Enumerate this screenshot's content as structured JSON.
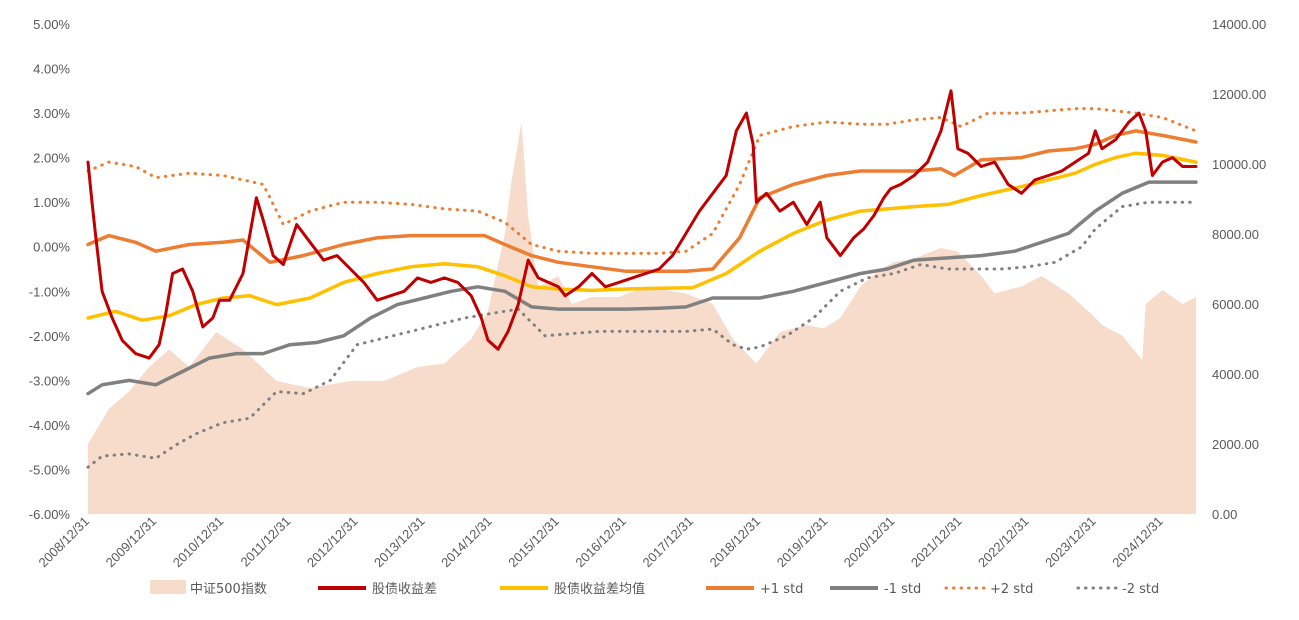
{
  "chart_data": {
    "type": "line",
    "x_axis": {
      "start": "2008/12/31",
      "end": "2025/06/30",
      "tick_labels": [
        "2008/12/31",
        "2009/12/31",
        "2010/12/31",
        "2011/12/31",
        "2012/12/31",
        "2013/12/31",
        "2014/12/31",
        "2015/12/31",
        "2016/12/31",
        "2017/12/31",
        "2018/12/31",
        "2019/12/31",
        "2020/12/31",
        "2021/12/31",
        "2022/12/31",
        "2023/12/31",
        "2024/12/31"
      ]
    },
    "y_left": {
      "ylim": [
        -6,
        5
      ],
      "tick_labels": [
        "5.00%",
        "4.00%",
        "3.00%",
        "2.00%",
        "1.00%",
        "0.00%",
        "-1.00%",
        "-2.00%",
        "-3.00%",
        "-4.00%",
        "-5.00%",
        "-6.00%"
      ]
    },
    "y_right": {
      "ylim": [
        0,
        14000
      ],
      "tick_labels": [
        "14000.00",
        "12000.00",
        "10000.00",
        "8000.00",
        "6000.00",
        "4000.00",
        "2000.00",
        "0.00"
      ]
    },
    "grid": false,
    "legend_position": "bottom",
    "series": [
      {
        "name": "中证500指数",
        "kind": "area",
        "axis": "right",
        "color": "#f8dccb",
        "x": [
          2008.99,
          2009.3,
          2009.6,
          2009.9,
          2010.2,
          2010.5,
          2010.9,
          2011.3,
          2011.8,
          2012.3,
          2012.9,
          2013.4,
          2013.9,
          2014.3,
          2014.7,
          2014.95,
          2015.2,
          2015.3,
          2015.45,
          2015.55,
          2015.7,
          2016.0,
          2016.2,
          2016.5,
          2016.9,
          2017.3,
          2017.9,
          2018.3,
          2018.6,
          2018.95,
          2019.3,
          2019.7,
          2019.95,
          2020.2,
          2020.5,
          2020.8,
          2021.0,
          2021.3,
          2021.7,
          2021.95,
          2022.3,
          2022.5,
          2022.9,
          2023.2,
          2023.6,
          2023.95,
          2024.1,
          2024.4,
          2024.7,
          2024.75,
          2025.0,
          2025.3,
          2025.5
        ],
        "values": [
          2000,
          3000,
          3500,
          4200,
          4700,
          4200,
          5200,
          4700,
          3800,
          3600,
          3800,
          3800,
          4200,
          4300,
          5000,
          5800,
          8000,
          9500,
          11200,
          8500,
          6500,
          6800,
          6000,
          6200,
          6200,
          6500,
          6300,
          6000,
          5000,
          4300,
          5200,
          5400,
          5300,
          5600,
          6500,
          7000,
          7200,
          7300,
          7600,
          7500,
          6800,
          6300,
          6500,
          6800,
          6300,
          5700,
          5400,
          5100,
          4400,
          6000,
          6400,
          6000,
          6200
        ]
      },
      {
        "name": "股债收益差",
        "kind": "line",
        "axis": "left",
        "color": "#c00000",
        "x": [
          2008.99,
          2009.05,
          2009.1,
          2009.2,
          2009.35,
          2009.5,
          2009.7,
          2009.9,
          2010.05,
          2010.15,
          2010.25,
          2010.4,
          2010.55,
          2010.7,
          2010.85,
          2010.95,
          2011.1,
          2011.3,
          2011.5,
          2011.6,
          2011.75,
          2011.9,
          2012.1,
          2012.3,
          2012.5,
          2012.7,
          2012.9,
          2013.1,
          2013.3,
          2013.5,
          2013.7,
          2013.9,
          2014.1,
          2014.3,
          2014.5,
          2014.7,
          2014.85,
          2014.95,
          2015.1,
          2015.25,
          2015.4,
          2015.55,
          2015.7,
          2015.85,
          2016.0,
          2016.1,
          2016.3,
          2016.5,
          2016.7,
          2016.9,
          2017.1,
          2017.3,
          2017.5,
          2017.7,
          2017.9,
          2018.1,
          2018.3,
          2018.5,
          2018.65,
          2018.8,
          2018.9,
          2018.95,
          2019.1,
          2019.3,
          2019.5,
          2019.7,
          2019.9,
          2020.0,
          2020.2,
          2020.4,
          2020.55,
          2020.7,
          2020.85,
          2020.95,
          2021.1,
          2021.3,
          2021.5,
          2021.7,
          2021.85,
          2021.95,
          2022.1,
          2022.3,
          2022.5,
          2022.7,
          2022.9,
          2023.1,
          2023.3,
          2023.5,
          2023.7,
          2023.9,
          2024.0,
          2024.1,
          2024.3,
          2024.5,
          2024.65,
          2024.75,
          2024.85,
          2025.0,
          2025.15,
          2025.3,
          2025.5
        ],
        "values": [
          1.9,
          1.0,
          0.3,
          -1.0,
          -1.6,
          -2.1,
          -2.4,
          -2.5,
          -2.2,
          -1.5,
          -0.6,
          -0.5,
          -1.0,
          -1.8,
          -1.6,
          -1.2,
          -1.2,
          -0.6,
          1.1,
          0.6,
          -0.2,
          -0.4,
          0.5,
          0.1,
          -0.3,
          -0.2,
          -0.5,
          -0.8,
          -1.2,
          -1.1,
          -1.0,
          -0.7,
          -0.8,
          -0.7,
          -0.8,
          -1.1,
          -1.6,
          -2.1,
          -2.3,
          -1.9,
          -1.3,
          -0.3,
          -0.7,
          -0.8,
          -0.9,
          -1.1,
          -0.9,
          -0.6,
          -0.9,
          -0.8,
          -0.7,
          -0.6,
          -0.5,
          -0.2,
          0.3,
          0.8,
          1.2,
          1.6,
          2.6,
          3.0,
          2.3,
          1.0,
          1.2,
          0.8,
          1.0,
          0.5,
          1.0,
          0.2,
          -0.2,
          0.2,
          0.4,
          0.7,
          1.1,
          1.3,
          1.4,
          1.6,
          1.9,
          2.6,
          3.5,
          2.2,
          2.1,
          1.8,
          1.9,
          1.4,
          1.2,
          1.5,
          1.6,
          1.7,
          1.9,
          2.1,
          2.6,
          2.2,
          2.4,
          2.8,
          3.0,
          2.6,
          1.6,
          1.9,
          2.0,
          1.8,
          1.8
        ]
      },
      {
        "name": "股债收益差均值",
        "kind": "line",
        "axis": "left",
        "color": "#ffc000",
        "x": [
          2008.99,
          2009.4,
          2009.8,
          2010.2,
          2010.6,
          2011.0,
          2011.4,
          2011.8,
          2012.3,
          2012.8,
          2013.3,
          2013.8,
          2014.3,
          2014.8,
          2015.2,
          2015.6,
          2016.0,
          2016.5,
          2017.0,
          2017.5,
          2018.0,
          2018.5,
          2019.0,
          2019.5,
          2020.0,
          2020.5,
          2020.9,
          2021.3,
          2021.8,
          2022.3,
          2022.9,
          2023.3,
          2023.7,
          2024.0,
          2024.3,
          2024.6,
          2025.0,
          2025.5
        ],
        "values": [
          -1.6,
          -1.45,
          -1.65,
          -1.55,
          -1.3,
          -1.15,
          -1.1,
          -1.3,
          -1.15,
          -0.8,
          -0.6,
          -0.45,
          -0.38,
          -0.45,
          -0.65,
          -0.9,
          -0.95,
          -0.98,
          -0.95,
          -0.93,
          -0.92,
          -0.6,
          -0.1,
          0.3,
          0.6,
          0.8,
          0.85,
          0.9,
          0.95,
          1.15,
          1.35,
          1.5,
          1.65,
          1.85,
          2.0,
          2.1,
          2.05,
          1.9
        ]
      },
      {
        "name": "+1 std",
        "kind": "line",
        "axis": "left",
        "color": "#ed7d31",
        "x": [
          2008.99,
          2009.3,
          2009.7,
          2010.0,
          2010.5,
          2011.0,
          2011.3,
          2011.7,
          2012.2,
          2012.8,
          2013.3,
          2013.8,
          2014.3,
          2014.9,
          2015.2,
          2015.6,
          2016.0,
          2016.5,
          2017.0,
          2017.5,
          2017.9,
          2018.3,
          2018.7,
          2019.0,
          2019.5,
          2020.0,
          2020.5,
          2020.9,
          2021.3,
          2021.7,
          2021.9,
          2022.3,
          2022.9,
          2023.3,
          2023.7,
          2024.0,
          2024.3,
          2024.6,
          2025.0,
          2025.5
        ],
        "values": [
          0.05,
          0.25,
          0.1,
          -0.1,
          0.05,
          0.1,
          0.15,
          -0.35,
          -0.2,
          0.05,
          0.2,
          0.25,
          0.25,
          0.25,
          0.05,
          -0.2,
          -0.35,
          -0.45,
          -0.55,
          -0.55,
          -0.55,
          -0.5,
          0.2,
          1.1,
          1.4,
          1.6,
          1.7,
          1.7,
          1.7,
          1.75,
          1.6,
          1.95,
          2.0,
          2.15,
          2.2,
          2.3,
          2.5,
          2.6,
          2.5,
          2.35
        ]
      },
      {
        "name": "-1 std",
        "kind": "line",
        "axis": "left",
        "color": "#808080",
        "x": [
          2008.99,
          2009.2,
          2009.6,
          2010.0,
          2010.4,
          2010.8,
          2011.2,
          2011.6,
          2012.0,
          2012.4,
          2012.8,
          2013.2,
          2013.6,
          2014.0,
          2014.4,
          2014.8,
          2015.2,
          2015.6,
          2016.0,
          2016.5,
          2017.0,
          2017.5,
          2017.9,
          2018.3,
          2018.7,
          2019.0,
          2019.5,
          2020.0,
          2020.5,
          2020.9,
          2021.3,
          2021.8,
          2022.3,
          2022.8,
          2023.2,
          2023.6,
          2024.0,
          2024.4,
          2024.8,
          2025.5
        ],
        "values": [
          -3.3,
          -3.1,
          -3.0,
          -3.1,
          -2.8,
          -2.5,
          -2.4,
          -2.4,
          -2.2,
          -2.15,
          -2.0,
          -1.6,
          -1.3,
          -1.15,
          -1.0,
          -0.9,
          -1.0,
          -1.35,
          -1.4,
          -1.4,
          -1.4,
          -1.38,
          -1.35,
          -1.15,
          -1.15,
          -1.15,
          -1.0,
          -0.8,
          -0.6,
          -0.5,
          -0.3,
          -0.25,
          -0.2,
          -0.1,
          0.1,
          0.3,
          0.8,
          1.2,
          1.45,
          1.45
        ]
      },
      {
        "name": "+2 std",
        "kind": "dotted",
        "axis": "left",
        "color": "#ed7d31",
        "x": [
          2008.99,
          2009.3,
          2009.7,
          2010.0,
          2010.5,
          2011.0,
          2011.3,
          2011.6,
          2011.9,
          2012.3,
          2012.8,
          2013.3,
          2013.8,
          2014.3,
          2014.8,
          2015.2,
          2015.6,
          2016.0,
          2016.5,
          2017.0,
          2017.5,
          2017.9,
          2018.3,
          2018.7,
          2019.0,
          2019.5,
          2020.0,
          2020.5,
          2020.9,
          2021.3,
          2021.7,
          2022.0,
          2022.4,
          2022.9,
          2023.3,
          2023.7,
          2024.0,
          2024.3,
          2024.6,
          2025.0,
          2025.5
        ],
        "values": [
          1.7,
          1.9,
          1.8,
          1.55,
          1.65,
          1.6,
          1.5,
          1.4,
          0.5,
          0.8,
          1.0,
          1.0,
          0.95,
          0.85,
          0.8,
          0.55,
          0.05,
          -0.1,
          -0.15,
          -0.15,
          -0.15,
          -0.1,
          0.3,
          1.4,
          2.5,
          2.7,
          2.8,
          2.75,
          2.75,
          2.85,
          2.9,
          2.7,
          3.0,
          3.0,
          3.05,
          3.1,
          3.1,
          3.05,
          3.0,
          2.9,
          2.6
        ]
      },
      {
        "name": "-2 std",
        "kind": "dotted",
        "axis": "left",
        "color": "#808080",
        "x": [
          2008.99,
          2009.2,
          2009.6,
          2010.0,
          2010.3,
          2010.6,
          2011.0,
          2011.4,
          2011.6,
          2011.8,
          2012.2,
          2012.6,
          2013.0,
          2013.4,
          2013.8,
          2014.2,
          2014.6,
          2015.0,
          2015.4,
          2015.8,
          2016.2,
          2016.6,
          2017.0,
          2017.4,
          2017.9,
          2018.3,
          2018.6,
          2018.8,
          2019.0,
          2019.4,
          2019.8,
          2020.2,
          2020.6,
          2021.0,
          2021.4,
          2021.8,
          2022.2,
          2022.6,
          2023.0,
          2023.4,
          2023.8,
          2024.0,
          2024.4,
          2024.8,
          2025.5
        ],
        "values": [
          -4.95,
          -4.7,
          -4.65,
          -4.75,
          -4.45,
          -4.2,
          -3.95,
          -3.85,
          -3.55,
          -3.25,
          -3.3,
          -3.0,
          -2.2,
          -2.05,
          -1.9,
          -1.75,
          -1.6,
          -1.5,
          -1.4,
          -2.0,
          -1.95,
          -1.9,
          -1.9,
          -1.9,
          -1.9,
          -1.85,
          -2.2,
          -2.3,
          -2.25,
          -2.0,
          -1.6,
          -1.0,
          -0.7,
          -0.6,
          -0.4,
          -0.5,
          -0.5,
          -0.5,
          -0.45,
          -0.35,
          0.0,
          0.4,
          0.9,
          1.0,
          1.0
        ]
      }
    ]
  }
}
